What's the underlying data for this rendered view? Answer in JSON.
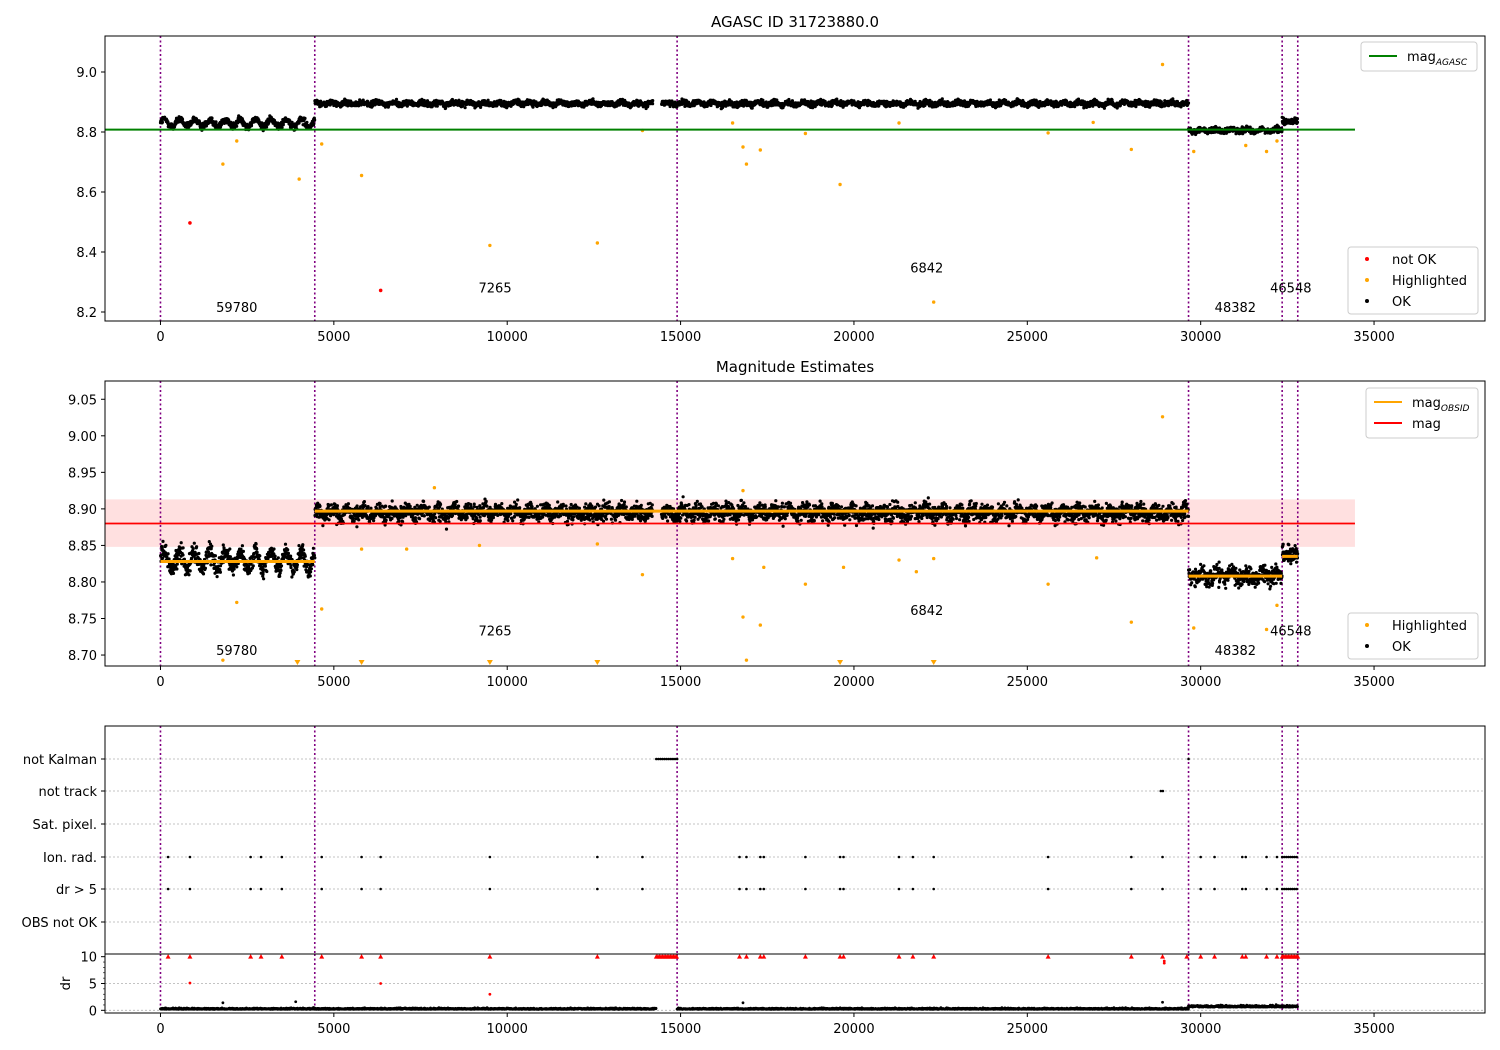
{
  "chart_data": [
    {
      "type": "scatter",
      "title": "AGASC ID 31723880.0",
      "xlim": [
        -1600,
        38200
      ],
      "ylim": [
        8.17,
        9.12
      ],
      "xticks": [
        0,
        5000,
        10000,
        15000,
        20000,
        25000,
        30000,
        35000
      ],
      "yticks": [
        8.2,
        8.4,
        8.6,
        8.8,
        9.0
      ],
      "ytick_labels": [
        "8.2",
        "8.4",
        "8.6",
        "8.8",
        "9.0"
      ],
      "obs_boundaries": [
        0,
        4450,
        14900,
        29650,
        32350,
        32800
      ],
      "obsids": [
        {
          "label": "59780",
          "x": 2200,
          "y": 8.2
        },
        {
          "label": "7265",
          "x": 9650,
          "y": 8.265
        },
        {
          "label": "6842",
          "x": 22100,
          "y": 8.332
        },
        {
          "label": "48382",
          "x": 31000,
          "y": 8.2
        },
        {
          "label": "46548",
          "x": 32600,
          "y": 8.265
        }
      ],
      "hlines": [
        {
          "name": "mag_AGASC",
          "value": 8.808,
          "color": "#008000",
          "x_range": [
            0,
            34450
          ]
        }
      ],
      "segments": [
        {
          "x": [
            0,
            4450
          ],
          "center": 8.83,
          "amp": 0.012,
          "spread": 0.02
        },
        {
          "x": [
            4450,
            14200
          ],
          "center": 8.895,
          "amp": 0.004,
          "spread": 0.016
        },
        {
          "x": [
            14450,
            29650
          ],
          "center": 8.895,
          "amp": 0.004,
          "spread": 0.016
        },
        {
          "x": [
            29650,
            32350
          ],
          "center": 8.805,
          "amp": 0.004,
          "spread": 0.016
        },
        {
          "x": [
            32350,
            32800
          ],
          "center": 8.835,
          "amp": 0.0,
          "spread": 0.02
        }
      ],
      "highlighted": [
        [
          1800,
          8.693
        ],
        [
          2200,
          8.77
        ],
        [
          4000,
          8.643
        ],
        [
          4650,
          8.76
        ],
        [
          5800,
          8.655
        ],
        [
          9500,
          8.422
        ],
        [
          12600,
          8.43
        ],
        [
          13900,
          8.805
        ],
        [
          16800,
          8.75
        ],
        [
          16900,
          8.693
        ],
        [
          17300,
          8.74
        ],
        [
          18600,
          8.795
        ],
        [
          19600,
          8.625
        ],
        [
          22300,
          8.233
        ],
        [
          25600,
          8.797
        ],
        [
          28000,
          8.742
        ],
        [
          28900,
          9.025
        ],
        [
          29800,
          8.735
        ],
        [
          31300,
          8.755
        ],
        [
          31900,
          8.735
        ],
        [
          32200,
          8.77
        ],
        [
          16500,
          8.83
        ],
        [
          21300,
          8.83
        ],
        [
          26900,
          8.832
        ]
      ],
      "not_ok": [
        [
          850,
          8.497
        ],
        [
          6350,
          8.272
        ]
      ],
      "legend": [
        {
          "label": "mag",
          "sub": "AGASC",
          "color": "#008000",
          "kind": "line"
        },
        {
          "label": "not OK",
          "color": "#ff0000",
          "kind": "dot"
        },
        {
          "label": "Highlighted",
          "color": "#ffa500",
          "kind": "dot"
        },
        {
          "label": "OK",
          "color": "#000000",
          "kind": "dot"
        }
      ]
    },
    {
      "type": "scatter",
      "title": "Magnitude Estimates",
      "xlim": [
        -1600,
        38200
      ],
      "ylim": [
        8.685,
        9.075
      ],
      "xticks": [
        0,
        5000,
        10000,
        15000,
        20000,
        25000,
        30000,
        35000
      ],
      "yticks": [
        8.7,
        8.75,
        8.8,
        8.85,
        8.9,
        8.95,
        9.0,
        9.05
      ],
      "ytick_labels": [
        "8.70",
        "8.75",
        "8.80",
        "8.85",
        "8.90",
        "8.95",
        "9.00",
        "9.05"
      ],
      "obs_boundaries": [
        0,
        4450,
        14900,
        29650,
        32350,
        32800
      ],
      "obsids": [
        {
          "label": "59780",
          "x": 2200,
          "y": 8.7
        },
        {
          "label": "7265",
          "x": 9650,
          "y": 8.727
        },
        {
          "label": "6842",
          "x": 22100,
          "y": 8.755
        },
        {
          "label": "48382",
          "x": 31000,
          "y": 8.7
        },
        {
          "label": "46548",
          "x": 32600,
          "y": 8.727
        }
      ],
      "mag": 8.88,
      "mag_band": [
        8.848,
        8.913
      ],
      "mag_x_range": [
        0,
        34450
      ],
      "mag_obsid": [
        {
          "x": [
            0,
            4450
          ],
          "value": 8.828
        },
        {
          "x": [
            4450,
            14900
          ],
          "value": 8.897
        },
        {
          "x": [
            14900,
            29650
          ],
          "value": 8.897
        },
        {
          "x": [
            29650,
            32350
          ],
          "value": 8.808
        },
        {
          "x": [
            32350,
            32800
          ],
          "value": 8.835
        }
      ],
      "segments": [
        {
          "x": [
            0,
            4450
          ],
          "center": 8.83,
          "amp": 0.012,
          "spread": 0.022
        },
        {
          "x": [
            4450,
            14200
          ],
          "center": 8.895,
          "amp": 0.004,
          "spread": 0.02
        },
        {
          "x": [
            14450,
            29650
          ],
          "center": 8.895,
          "amp": 0.004,
          "spread": 0.02
        },
        {
          "x": [
            29650,
            32350
          ],
          "center": 8.808,
          "amp": 0.004,
          "spread": 0.022
        },
        {
          "x": [
            32350,
            32800
          ],
          "center": 8.838,
          "amp": 0.0,
          "spread": 0.022
        }
      ],
      "highlighted": [
        [
          1800,
          8.693
        ],
        [
          2200,
          8.772
        ],
        [
          4650,
          8.763
        ],
        [
          5800,
          8.845
        ],
        [
          7100,
          8.845
        ],
        [
          9200,
          8.85
        ],
        [
          12600,
          8.852
        ],
        [
          13900,
          8.81
        ],
        [
          16500,
          8.832
        ],
        [
          16800,
          8.752
        ],
        [
          16900,
          8.693
        ],
        [
          17300,
          8.741
        ],
        [
          17400,
          8.82
        ],
        [
          18600,
          8.797
        ],
        [
          19700,
          8.82
        ],
        [
          21300,
          8.83
        ],
        [
          21800,
          8.814
        ],
        [
          22300,
          8.832
        ],
        [
          25600,
          8.797
        ],
        [
          27000,
          8.833
        ],
        [
          28000,
          8.745
        ],
        [
          28900,
          9.026
        ],
        [
          29800,
          8.737
        ],
        [
          31900,
          8.735
        ],
        [
          32200,
          8.768
        ],
        [
          7900,
          8.929
        ],
        [
          16800,
          8.925
        ]
      ],
      "clipped_low": [
        3950,
        5800,
        9500,
        12600,
        19600,
        22300
      ],
      "legend": [
        {
          "label": "mag",
          "sub": "OBSID",
          "color": "#ffa500",
          "kind": "line"
        },
        {
          "label": "mag",
          "color": "#ff0000",
          "kind": "line"
        },
        {
          "label": "Highlighted",
          "color": "#ffa500",
          "kind": "dot"
        },
        {
          "label": "OK",
          "color": "#000000",
          "kind": "dot"
        }
      ]
    },
    {
      "type": "scatter",
      "title": "",
      "xlim": [
        -1600,
        38200
      ],
      "xticks": [
        0,
        5000,
        10000,
        15000,
        20000,
        25000,
        30000,
        35000
      ],
      "obs_boundaries": [
        0,
        4450,
        14900,
        29650,
        32350,
        32800
      ],
      "flag_rows": [
        "not Kalman",
        "not track",
        "Sat. pixel.",
        "Ion. rad.",
        "dr > 5",
        "OBS not OK"
      ],
      "flags": {
        "not Kalman": {
          "ranges": [
            [
              14300,
              14900
            ]
          ],
          "points": [
            29650
          ]
        },
        "not track": {
          "ranges": [
            [
              28850,
              28950
            ]
          ],
          "points": []
        },
        "Sat. pixel.": {
          "ranges": [],
          "points": []
        },
        "Ion. rad.": {
          "ranges": [
            [
              32350,
              32800
            ]
          ],
          "points": [
            220,
            850,
            2600,
            2900,
            3500,
            4650,
            5800,
            6350,
            9500,
            12600,
            13900,
            16700,
            16900,
            17300,
            17400,
            18600,
            19600,
            19700,
            21300,
            21700,
            22300,
            25600,
            28000,
            28900,
            30000,
            30400,
            31200,
            31300,
            31900,
            32200
          ]
        },
        "dr > 5": {
          "ranges": [
            [
              32350,
              32800
            ]
          ],
          "points": [
            220,
            850,
            2600,
            2900,
            3500,
            4650,
            5800,
            6350,
            9500,
            12600,
            13900,
            16700,
            16900,
            17300,
            17400,
            18600,
            19600,
            19700,
            21300,
            21700,
            22300,
            25600,
            28000,
            28900,
            30000,
            30400,
            31200,
            31300,
            31900,
            32200
          ]
        },
        "OBS not OK": {
          "ranges": [],
          "points": []
        }
      },
      "dr_axis": {
        "ylabel": "dr",
        "ylim": [
          -0.5,
          10.5
        ],
        "yticks": [
          0,
          5,
          10
        ],
        "clipped_at_10": [
          220,
          850,
          2600,
          2900,
          3500,
          4650,
          5800,
          6350,
          9500,
          12600,
          16700,
          16900,
          17300,
          17400,
          18600,
          19600,
          19700,
          21300,
          21700,
          22300,
          25600,
          28000,
          28900,
          29600,
          30000,
          30400,
          31200,
          31300,
          31900,
          32200
        ],
        "clipped_ranges": [
          [
            14300,
            14900
          ],
          [
            32350,
            32800
          ]
        ],
        "extra_points": [
          [
            850,
            5.1,
            "#ff0000"
          ],
          [
            6350,
            5.0,
            "#ff0000"
          ],
          [
            9500,
            3.0,
            "#ff0000"
          ],
          [
            1800,
            1.4,
            "#000000"
          ],
          [
            3900,
            1.6,
            "#000000"
          ],
          [
            16800,
            1.4,
            "#000000"
          ],
          [
            28900,
            1.5,
            "#000000"
          ],
          [
            28950,
            9.2,
            "#ff0000"
          ],
          [
            28950,
            8.8,
            "#ff0000"
          ]
        ],
        "baseline_segments": [
          {
            "x": [
              0,
              14300
            ],
            "level": 0.2
          },
          {
            "x": [
              14900,
              29650
            ],
            "level": 0.2
          },
          {
            "x": [
              29650,
              32800
            ],
            "level": 0.6
          }
        ]
      }
    }
  ]
}
